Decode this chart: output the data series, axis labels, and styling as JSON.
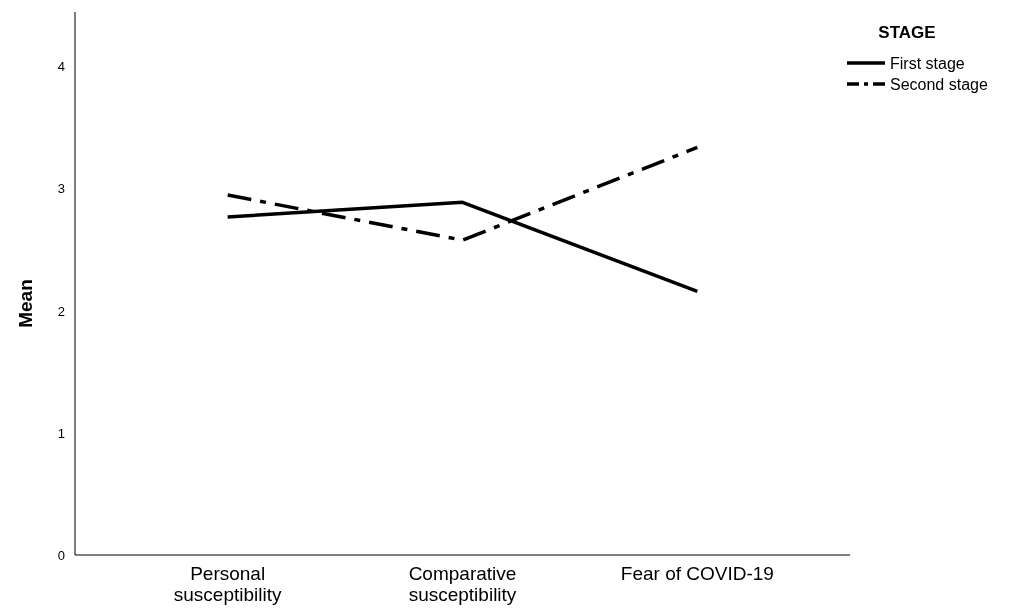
{
  "chart_data": {
    "type": "line",
    "ylabel": "Mean",
    "legend_title": "STAGE",
    "categories": [
      "Personal susceptibility",
      "Comparative susceptibility",
      "Fear of COVID-19"
    ],
    "series": [
      {
        "name": "First stage",
        "color": "#000000",
        "line_style": "solid",
        "values": [
          2.77,
          2.89,
          2.16
        ]
      },
      {
        "name": "Second stage",
        "color": "#000000",
        "line_style": "dashed",
        "values": [
          2.95,
          2.58,
          3.34
        ]
      }
    ],
    "ylim": [
      0,
      4.45
    ],
    "yticks": [
      0,
      1,
      2,
      3,
      4
    ],
    "grid": false,
    "legend": "top right",
    "marker": "none"
  }
}
